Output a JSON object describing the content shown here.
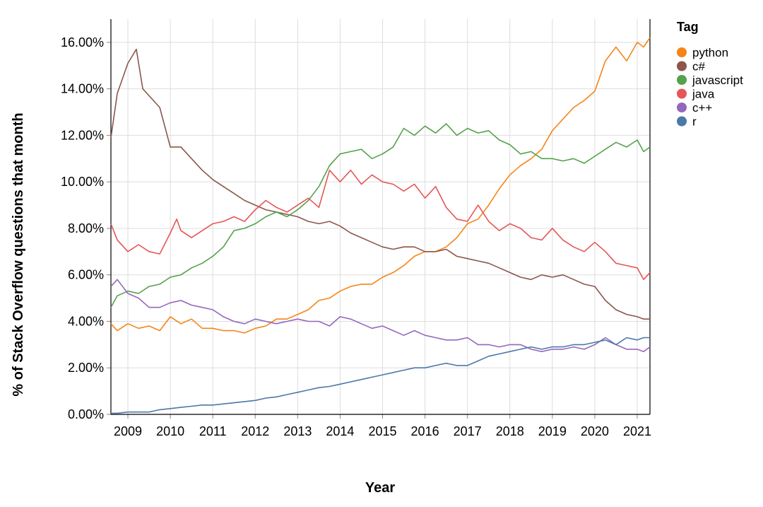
{
  "chart_data": {
    "type": "line",
    "title": "",
    "xlabel": "Year",
    "ylabel": "% of Stack Overflow questions that month",
    "legend_title": "Tag",
    "legend_position": "right",
    "grid": true,
    "xlim": [
      2008.6,
      2021.3
    ],
    "ylim": [
      0,
      17
    ],
    "x_ticks": [
      2009,
      2010,
      2011,
      2012,
      2013,
      2014,
      2015,
      2016,
      2017,
      2018,
      2019,
      2020,
      2021
    ],
    "x_tick_labels": [
      "2009",
      "2010",
      "2011",
      "2012",
      "2013",
      "2014",
      "2015",
      "2016",
      "2017",
      "2018",
      "2019",
      "2020",
      "2021"
    ],
    "y_ticks": [
      0,
      2,
      4,
      6,
      8,
      10,
      12,
      14,
      16
    ],
    "y_tick_labels": [
      "0.00%",
      "2.00%",
      "4.00%",
      "6.00%",
      "8.00%",
      "10.00%",
      "12.00%",
      "14.00%",
      "16.00%"
    ],
    "series": [
      {
        "name": "python",
        "color": "#f58518",
        "x": [
          2008.6,
          2008.75,
          2009.0,
          2009.25,
          2009.5,
          2009.75,
          2010.0,
          2010.25,
          2010.5,
          2010.75,
          2011.0,
          2011.25,
          2011.5,
          2011.75,
          2012.0,
          2012.25,
          2012.5,
          2012.75,
          2013.0,
          2013.25,
          2013.5,
          2013.75,
          2014.0,
          2014.25,
          2014.5,
          2014.75,
          2015.0,
          2015.25,
          2015.5,
          2015.75,
          2016.0,
          2016.25,
          2016.5,
          2016.75,
          2017.0,
          2017.25,
          2017.5,
          2017.75,
          2018.0,
          2018.25,
          2018.5,
          2018.75,
          2019.0,
          2019.25,
          2019.5,
          2019.75,
          2020.0,
          2020.25,
          2020.5,
          2020.75,
          2021.0,
          2021.15,
          2021.3
        ],
        "y": [
          3.9,
          3.6,
          3.9,
          3.7,
          3.8,
          3.6,
          4.2,
          3.9,
          4.1,
          3.7,
          3.7,
          3.6,
          3.6,
          3.5,
          3.7,
          3.8,
          4.1,
          4.1,
          4.3,
          4.5,
          4.9,
          5.0,
          5.3,
          5.5,
          5.6,
          5.6,
          5.9,
          6.1,
          6.4,
          6.8,
          7.0,
          7.0,
          7.2,
          7.6,
          8.2,
          8.4,
          9.0,
          9.7,
          10.3,
          10.7,
          11.0,
          11.4,
          12.2,
          12.7,
          13.2,
          13.5,
          13.9,
          15.2,
          15.8,
          15.2,
          16.0,
          15.8,
          16.2
        ]
      },
      {
        "name": "c#",
        "color": "#8c564b",
        "x": [
          2008.6,
          2008.75,
          2009.0,
          2009.2,
          2009.35,
          2009.5,
          2009.75,
          2010.0,
          2010.25,
          2010.5,
          2010.75,
          2011.0,
          2011.25,
          2011.5,
          2011.75,
          2012.0,
          2012.25,
          2012.5,
          2012.75,
          2013.0,
          2013.25,
          2013.5,
          2013.75,
          2014.0,
          2014.25,
          2014.5,
          2014.75,
          2015.0,
          2015.25,
          2015.5,
          2015.75,
          2016.0,
          2016.25,
          2016.5,
          2016.75,
          2017.0,
          2017.25,
          2017.5,
          2017.75,
          2018.0,
          2018.25,
          2018.5,
          2018.75,
          2019.0,
          2019.25,
          2019.5,
          2019.75,
          2020.0,
          2020.25,
          2020.5,
          2020.75,
          2021.0,
          2021.15,
          2021.3
        ],
        "y": [
          11.9,
          13.8,
          15.1,
          15.7,
          14.0,
          13.7,
          13.2,
          11.5,
          11.5,
          11.0,
          10.5,
          10.1,
          9.8,
          9.5,
          9.2,
          9.0,
          8.8,
          8.7,
          8.6,
          8.5,
          8.3,
          8.2,
          8.3,
          8.1,
          7.8,
          7.6,
          7.4,
          7.2,
          7.1,
          7.2,
          7.2,
          7.0,
          7.0,
          7.1,
          6.8,
          6.7,
          6.6,
          6.5,
          6.3,
          6.1,
          5.9,
          5.8,
          6.0,
          5.9,
          6.0,
          5.8,
          5.6,
          5.5,
          4.9,
          4.5,
          4.3,
          4.2,
          4.1,
          4.1
        ]
      },
      {
        "name": "javascript",
        "color": "#54a24b",
        "x": [
          2008.6,
          2008.75,
          2009.0,
          2009.25,
          2009.5,
          2009.75,
          2010.0,
          2010.25,
          2010.5,
          2010.75,
          2011.0,
          2011.25,
          2011.5,
          2011.75,
          2012.0,
          2012.25,
          2012.5,
          2012.75,
          2013.0,
          2013.25,
          2013.5,
          2013.75,
          2014.0,
          2014.25,
          2014.5,
          2014.75,
          2015.0,
          2015.25,
          2015.5,
          2015.75,
          2016.0,
          2016.25,
          2016.5,
          2016.75,
          2017.0,
          2017.25,
          2017.5,
          2017.75,
          2018.0,
          2018.25,
          2018.5,
          2018.75,
          2019.0,
          2019.25,
          2019.5,
          2019.75,
          2020.0,
          2020.25,
          2020.5,
          2020.75,
          2021.0,
          2021.15,
          2021.3
        ],
        "y": [
          4.6,
          5.1,
          5.3,
          5.2,
          5.5,
          5.6,
          5.9,
          6.0,
          6.3,
          6.5,
          6.8,
          7.2,
          7.9,
          8.0,
          8.2,
          8.5,
          8.7,
          8.5,
          8.8,
          9.2,
          9.8,
          10.7,
          11.2,
          11.3,
          11.4,
          11.0,
          11.2,
          11.5,
          12.3,
          12.0,
          12.4,
          12.1,
          12.5,
          12.0,
          12.3,
          12.1,
          12.2,
          11.8,
          11.6,
          11.2,
          11.3,
          11.0,
          11.0,
          10.9,
          11.0,
          10.8,
          11.1,
          11.4,
          11.7,
          11.5,
          11.8,
          11.3,
          11.5
        ]
      },
      {
        "name": "java",
        "color": "#e45756",
        "x": [
          2008.6,
          2008.75,
          2009.0,
          2009.25,
          2009.5,
          2009.75,
          2010.0,
          2010.15,
          2010.25,
          2010.5,
          2010.75,
          2011.0,
          2011.25,
          2011.5,
          2011.75,
          2012.0,
          2012.25,
          2012.5,
          2012.75,
          2013.0,
          2013.25,
          2013.5,
          2013.75,
          2014.0,
          2014.25,
          2014.5,
          2014.75,
          2015.0,
          2015.25,
          2015.5,
          2015.75,
          2016.0,
          2016.25,
          2016.5,
          2016.75,
          2017.0,
          2017.25,
          2017.5,
          2017.75,
          2018.0,
          2018.25,
          2018.5,
          2018.75,
          2019.0,
          2019.25,
          2019.5,
          2019.75,
          2020.0,
          2020.25,
          2020.5,
          2020.75,
          2021.0,
          2021.15,
          2021.3
        ],
        "y": [
          8.2,
          7.5,
          7.0,
          7.3,
          7.0,
          6.9,
          7.8,
          8.4,
          7.9,
          7.6,
          7.9,
          8.2,
          8.3,
          8.5,
          8.3,
          8.8,
          9.2,
          8.9,
          8.7,
          9.0,
          9.3,
          8.9,
          10.5,
          10.0,
          10.5,
          9.9,
          10.3,
          10.0,
          9.9,
          9.6,
          9.9,
          9.3,
          9.8,
          8.9,
          8.4,
          8.3,
          9.0,
          8.3,
          7.9,
          8.2,
          8.0,
          7.6,
          7.5,
          8.0,
          7.5,
          7.2,
          7.0,
          7.4,
          7.0,
          6.5,
          6.4,
          6.3,
          5.8,
          6.1
        ]
      },
      {
        "name": "c++",
        "color": "#9467bd",
        "x": [
          2008.6,
          2008.75,
          2009.0,
          2009.25,
          2009.5,
          2009.75,
          2010.0,
          2010.25,
          2010.5,
          2010.75,
          2011.0,
          2011.25,
          2011.5,
          2011.75,
          2012.0,
          2012.25,
          2012.5,
          2012.75,
          2013.0,
          2013.25,
          2013.5,
          2013.75,
          2014.0,
          2014.25,
          2014.5,
          2014.75,
          2015.0,
          2015.25,
          2015.5,
          2015.75,
          2016.0,
          2016.25,
          2016.5,
          2016.75,
          2017.0,
          2017.25,
          2017.5,
          2017.75,
          2018.0,
          2018.25,
          2018.5,
          2018.75,
          2019.0,
          2019.25,
          2019.5,
          2019.75,
          2020.0,
          2020.25,
          2020.5,
          2020.75,
          2021.0,
          2021.15,
          2021.3
        ],
        "y": [
          5.5,
          5.8,
          5.2,
          5.0,
          4.6,
          4.6,
          4.8,
          4.9,
          4.7,
          4.6,
          4.5,
          4.2,
          4.0,
          3.9,
          4.1,
          4.0,
          3.9,
          4.0,
          4.1,
          4.0,
          4.0,
          3.8,
          4.2,
          4.1,
          3.9,
          3.7,
          3.8,
          3.6,
          3.4,
          3.6,
          3.4,
          3.3,
          3.2,
          3.2,
          3.3,
          3.0,
          3.0,
          2.9,
          3.0,
          3.0,
          2.8,
          2.7,
          2.8,
          2.8,
          2.9,
          2.8,
          3.0,
          3.3,
          3.0,
          2.8,
          2.8,
          2.7,
          2.9
        ]
      },
      {
        "name": "r",
        "color": "#4c78a8",
        "x": [
          2008.6,
          2008.75,
          2009.0,
          2009.25,
          2009.5,
          2009.75,
          2010.0,
          2010.25,
          2010.5,
          2010.75,
          2011.0,
          2011.25,
          2011.5,
          2011.75,
          2012.0,
          2012.25,
          2012.5,
          2012.75,
          2013.0,
          2013.25,
          2013.5,
          2013.75,
          2014.0,
          2014.25,
          2014.5,
          2014.75,
          2015.0,
          2015.25,
          2015.5,
          2015.75,
          2016.0,
          2016.25,
          2016.5,
          2016.75,
          2017.0,
          2017.25,
          2017.5,
          2017.75,
          2018.0,
          2018.25,
          2018.5,
          2018.75,
          2019.0,
          2019.25,
          2019.5,
          2019.75,
          2020.0,
          2020.25,
          2020.5,
          2020.75,
          2021.0,
          2021.15,
          2021.3
        ],
        "y": [
          0.05,
          0.05,
          0.1,
          0.1,
          0.1,
          0.2,
          0.25,
          0.3,
          0.35,
          0.4,
          0.4,
          0.45,
          0.5,
          0.55,
          0.6,
          0.7,
          0.75,
          0.85,
          0.95,
          1.05,
          1.15,
          1.2,
          1.3,
          1.4,
          1.5,
          1.6,
          1.7,
          1.8,
          1.9,
          2.0,
          2.0,
          2.1,
          2.2,
          2.1,
          2.1,
          2.3,
          2.5,
          2.6,
          2.7,
          2.8,
          2.9,
          2.8,
          2.9,
          2.9,
          3.0,
          3.0,
          3.1,
          3.2,
          3.0,
          3.3,
          3.2,
          3.3,
          3.3
        ]
      }
    ]
  }
}
